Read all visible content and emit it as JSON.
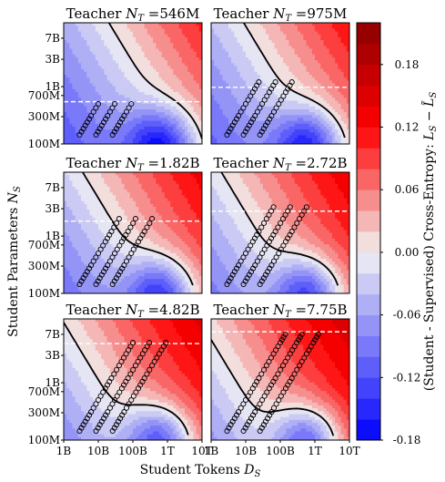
{
  "chart_data": {
    "type": "heatmap",
    "ylabel": "Student Parameters N_S",
    "xlabel": "Student Tokens D_S",
    "colorbar": {
      "label": "(Student - Supervised) Cross-Entropy: L_S − L̃_S",
      "range": [
        -0.18,
        0.22
      ],
      "ticks": [
        "0.18",
        "0.12",
        "0.06",
        "0.00",
        "-0.06",
        "-0.12",
        "-0.18"
      ],
      "tick_values": [
        0.18,
        0.12,
        0.06,
        0.0,
        -0.06,
        -0.12,
        -0.18
      ],
      "levels": 20,
      "colors": {
        "negative": "#0000ff",
        "zero": "#f2f2f2",
        "positive": "#8b0000"
      }
    },
    "x_ticks": [
      "1B",
      "10B",
      "100B",
      "1T",
      "10T"
    ],
    "x_tick_values": [
      1000000000.0,
      10000000000.0,
      100000000000.0,
      1000000000000.0,
      10000000000000.0
    ],
    "y_ticks": [
      "7B",
      "3B",
      "1B",
      "700M",
      "300M",
      "100M"
    ],
    "y_tick_values": [
      7000000000.0,
      3000000000.0,
      1000000000.0,
      700000000.0,
      300000000.0,
      100000000.0
    ],
    "xlim": [
      1000000000.0,
      10000000000000.0
    ],
    "ylim": [
      100000000.0,
      13000000000.0
    ],
    "contour_level": 0.0,
    "panels": [
      {
        "title_prefix": "Teacher",
        "title_var": "N",
        "title_sub": "T",
        "title_value": "=546M",
        "teacher_params": 546000000.0
      },
      {
        "title_prefix": "Teacher",
        "title_var": "N",
        "title_sub": "T",
        "title_value": "=975M",
        "teacher_params": 975000000.0
      },
      {
        "title_prefix": "Teacher",
        "title_var": "N",
        "title_sub": "T",
        "title_value": "=1.82B",
        "teacher_params": 1820000000.0
      },
      {
        "title_prefix": "Teacher",
        "title_var": "N",
        "title_sub": "T",
        "title_value": "=2.72B",
        "teacher_params": 2720000000.0
      },
      {
        "title_prefix": "Teacher",
        "title_var": "N",
        "title_sub": "T",
        "title_value": "=4.82B",
        "teacher_params": 4820000000.0
      },
      {
        "title_prefix": "Teacher",
        "title_var": "N",
        "title_sub": "T",
        "title_value": "=7.75B",
        "teacher_params": 7750000000.0
      }
    ],
    "experiment_points": {
      "description_free": true,
      "students": [
        144000000.0,
        210000000.0,
        310000000.0,
        500000000.0,
        800000000.0,
        1200000000.0,
        2000000000.0,
        3200000000.0,
        5000000000.0,
        7000000000.0
      ],
      "tokens_per_param_lines": [
        20,
        60,
        180
      ]
    }
  }
}
